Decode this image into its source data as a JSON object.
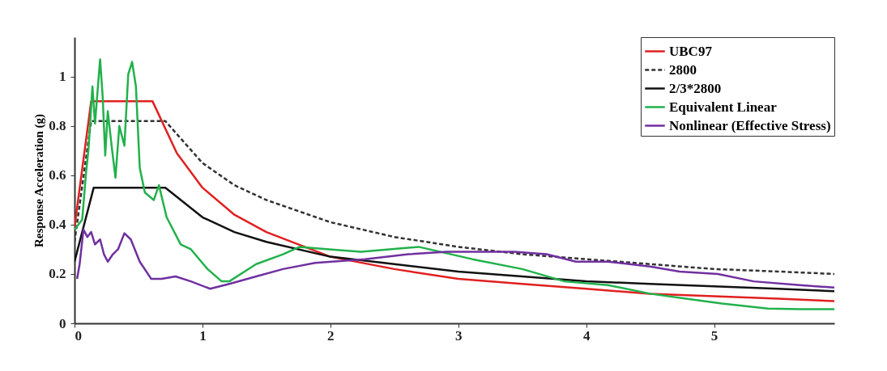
{
  "chart_data": {
    "type": "line",
    "ylabel": "Response Acceleration (g)",
    "xlim": [
      0,
      5.94
    ],
    "ylim": [
      0,
      1.16
    ],
    "xticks": [
      0,
      1,
      2,
      3,
      4,
      5
    ],
    "yticks": [
      0,
      0.2,
      0.4,
      0.6,
      0.8,
      1
    ],
    "grid": false,
    "legend": "top right",
    "marker": "none",
    "series": [
      {
        "name": "UBC97",
        "color": "#e02020",
        "line_style": "solid",
        "x": [
          0,
          0.13,
          0.61,
          0.8,
          1,
          1.25,
          1.5,
          2,
          2.5,
          3,
          3.5,
          4,
          4.5,
          5,
          5.5,
          5.94
        ],
        "values": [
          0.39,
          0.9,
          0.9,
          0.69,
          0.55,
          0.44,
          0.37,
          0.27,
          0.22,
          0.18,
          0.16,
          0.14,
          0.12,
          0.11,
          0.1,
          0.09
        ]
      },
      {
        "name": "2800",
        "color": "#333333",
        "line_style": "dashed",
        "x": [
          0,
          0.13,
          0.71,
          1,
          1.25,
          1.5,
          2,
          2.5,
          3,
          3.5,
          4,
          4.5,
          5,
          5.5,
          5.94
        ],
        "values": [
          0.33,
          0.82,
          0.82,
          0.65,
          0.56,
          0.5,
          0.41,
          0.35,
          0.31,
          0.28,
          0.26,
          0.24,
          0.22,
          0.21,
          0.2
        ]
      },
      {
        "name": "2/3*2800",
        "color": "#111111",
        "line_style": "solid",
        "x": [
          0,
          0.15,
          0.71,
          1,
          1.25,
          1.5,
          2,
          2.5,
          3,
          3.5,
          4,
          4.5,
          5,
          5.5,
          5.94
        ],
        "values": [
          0.25,
          0.55,
          0.55,
          0.43,
          0.37,
          0.33,
          0.27,
          0.24,
          0.21,
          0.19,
          0.17,
          0.16,
          0.15,
          0.14,
          0.13
        ]
      },
      {
        "name": "Equivalent Linear",
        "color": "#22b14c",
        "line_style": "solid",
        "x": [
          0,
          0.06,
          0.09,
          0.11,
          0.14,
          0.16,
          0.2,
          0.22,
          0.24,
          0.26,
          0.29,
          0.32,
          0.35,
          0.39,
          0.42,
          0.45,
          0.48,
          0.51,
          0.55,
          0.62,
          0.66,
          0.72,
          0.83,
          0.91,
          1.04,
          1.15,
          1.21,
          1.42,
          1.63,
          1.76,
          1.99,
          2.24,
          2.69,
          3.11,
          3.5,
          3.83,
          4.17,
          4.5,
          4.78,
          5.06,
          5.42,
          5.67,
          5.94
        ],
        "values": [
          0.38,
          0.42,
          0.61,
          0.71,
          0.96,
          0.81,
          1.07,
          0.92,
          0.68,
          0.86,
          0.72,
          0.59,
          0.8,
          0.72,
          1.01,
          1.06,
          0.96,
          0.63,
          0.53,
          0.5,
          0.56,
          0.43,
          0.32,
          0.3,
          0.22,
          0.17,
          0.17,
          0.24,
          0.28,
          0.31,
          0.3,
          0.29,
          0.31,
          0.26,
          0.22,
          0.17,
          0.155,
          0.12,
          0.1,
          0.08,
          0.06,
          0.057,
          0.057
        ]
      },
      {
        "name": "Nonlinear (Effective Stress)",
        "color": "#7030a0",
        "line_style": "solid",
        "x": [
          0.02,
          0.04,
          0.07,
          0.1,
          0.13,
          0.16,
          0.2,
          0.23,
          0.26,
          0.3,
          0.34,
          0.39,
          0.44,
          0.51,
          0.6,
          0.68,
          0.79,
          0.91,
          1.06,
          1.21,
          1.42,
          1.63,
          1.88,
          2.27,
          2.61,
          2.91,
          3.44,
          3.69,
          3.92,
          4.17,
          4.5,
          4.73,
          5.03,
          5.31,
          5.67,
          5.94
        ],
        "values": [
          0.18,
          0.24,
          0.38,
          0.35,
          0.37,
          0.32,
          0.34,
          0.28,
          0.25,
          0.28,
          0.3,
          0.365,
          0.34,
          0.25,
          0.18,
          0.18,
          0.19,
          0.17,
          0.14,
          0.16,
          0.19,
          0.22,
          0.245,
          0.26,
          0.28,
          0.29,
          0.29,
          0.28,
          0.25,
          0.25,
          0.23,
          0.21,
          0.2,
          0.17,
          0.155,
          0.145
        ]
      }
    ]
  }
}
